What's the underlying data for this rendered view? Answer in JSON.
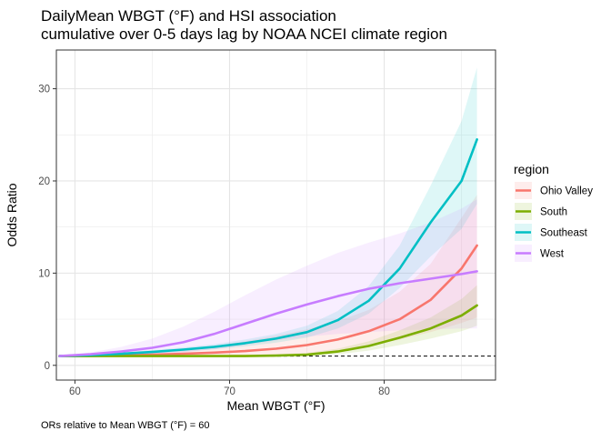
{
  "chart_data": {
    "type": "line",
    "title": "DailyMean WBGT (°F) and HSI association",
    "subtitle": "cumulative over 0-5 days lag by NOAA NCEI climate region",
    "xlabel": "Mean WBGT (°F)",
    "ylabel": "Odds Ratio",
    "caption": "ORs relative to Mean WBGT (°F) = 60",
    "xlim": [
      58.8,
      87.2
    ],
    "ylim": [
      -1.6,
      34.2
    ],
    "x_ticks": [
      60,
      70,
      80
    ],
    "y_ticks": [
      0,
      10,
      20,
      30
    ],
    "grid": true,
    "reference_line": {
      "y": 1,
      "style": "dashed",
      "x_start": 66.5
    },
    "legend": {
      "title": "region",
      "placement": "right"
    },
    "x": [
      59,
      61,
      63,
      65,
      67,
      69,
      71,
      73,
      75,
      77,
      79,
      81,
      83,
      85,
      86
    ],
    "series": [
      {
        "name": "Ohio Valley",
        "color": "#F8766D",
        "values": [
          1.0,
          1.02,
          1.07,
          1.15,
          1.25,
          1.38,
          1.55,
          1.8,
          2.2,
          2.8,
          3.7,
          5.0,
          7.1,
          10.5,
          13.0
        ],
        "lower": [
          1.0,
          0.97,
          0.95,
          0.93,
          0.92,
          0.92,
          0.95,
          1.05,
          1.25,
          1.6,
          2.1,
          2.8,
          3.6,
          4.6,
          5.2
        ],
        "upper": [
          1.0,
          1.08,
          1.2,
          1.4,
          1.7,
          2.1,
          2.6,
          3.2,
          3.9,
          4.8,
          6.0,
          8.0,
          11.0,
          16.0,
          18.5
        ]
      },
      {
        "name": "South",
        "color": "#7CAE00",
        "values": [
          1.0,
          1.0,
          1.0,
          1.0,
          1.0,
          1.0,
          1.0,
          1.05,
          1.15,
          1.5,
          2.1,
          3.0,
          4.0,
          5.4,
          6.5
        ],
        "lower": [
          1.0,
          0.96,
          0.94,
          0.93,
          0.92,
          0.92,
          0.92,
          0.94,
          1.0,
          1.2,
          1.6,
          2.2,
          2.9,
          3.7,
          4.3
        ],
        "upper": [
          1.0,
          1.04,
          1.06,
          1.08,
          1.1,
          1.12,
          1.15,
          1.2,
          1.35,
          1.8,
          2.6,
          3.8,
          5.2,
          7.2,
          8.7
        ]
      },
      {
        "name": "Southeast",
        "color": "#00BFC4",
        "values": [
          1.0,
          1.1,
          1.25,
          1.45,
          1.7,
          2.0,
          2.4,
          2.9,
          3.6,
          4.9,
          7.0,
          10.5,
          15.5,
          20.0,
          24.5
        ],
        "lower": [
          1.0,
          1.02,
          1.12,
          1.28,
          1.48,
          1.72,
          2.05,
          2.45,
          3.0,
          4.0,
          5.6,
          8.4,
          11.8,
          14.8,
          17.5
        ],
        "upper": [
          1.0,
          1.18,
          1.4,
          1.65,
          1.95,
          2.3,
          2.8,
          3.4,
          4.3,
          5.9,
          8.6,
          13.0,
          19.5,
          26.5,
          32.3
        ]
      },
      {
        "name": "West",
        "color": "#C77CFF",
        "values": [
          1.0,
          1.2,
          1.5,
          1.9,
          2.5,
          3.4,
          4.5,
          5.6,
          6.6,
          7.5,
          8.3,
          8.9,
          9.4,
          9.9,
          10.2
        ],
        "lower": [
          1.0,
          1.05,
          1.1,
          1.2,
          1.4,
          1.75,
          2.2,
          2.7,
          3.1,
          3.4,
          3.6,
          3.8,
          3.9,
          4.0,
          4.0
        ],
        "upper": [
          1.0,
          1.4,
          2.0,
          2.9,
          4.2,
          5.8,
          7.6,
          9.3,
          10.8,
          12.2,
          13.3,
          14.3,
          15.5,
          17.0,
          18.0
        ]
      }
    ]
  }
}
